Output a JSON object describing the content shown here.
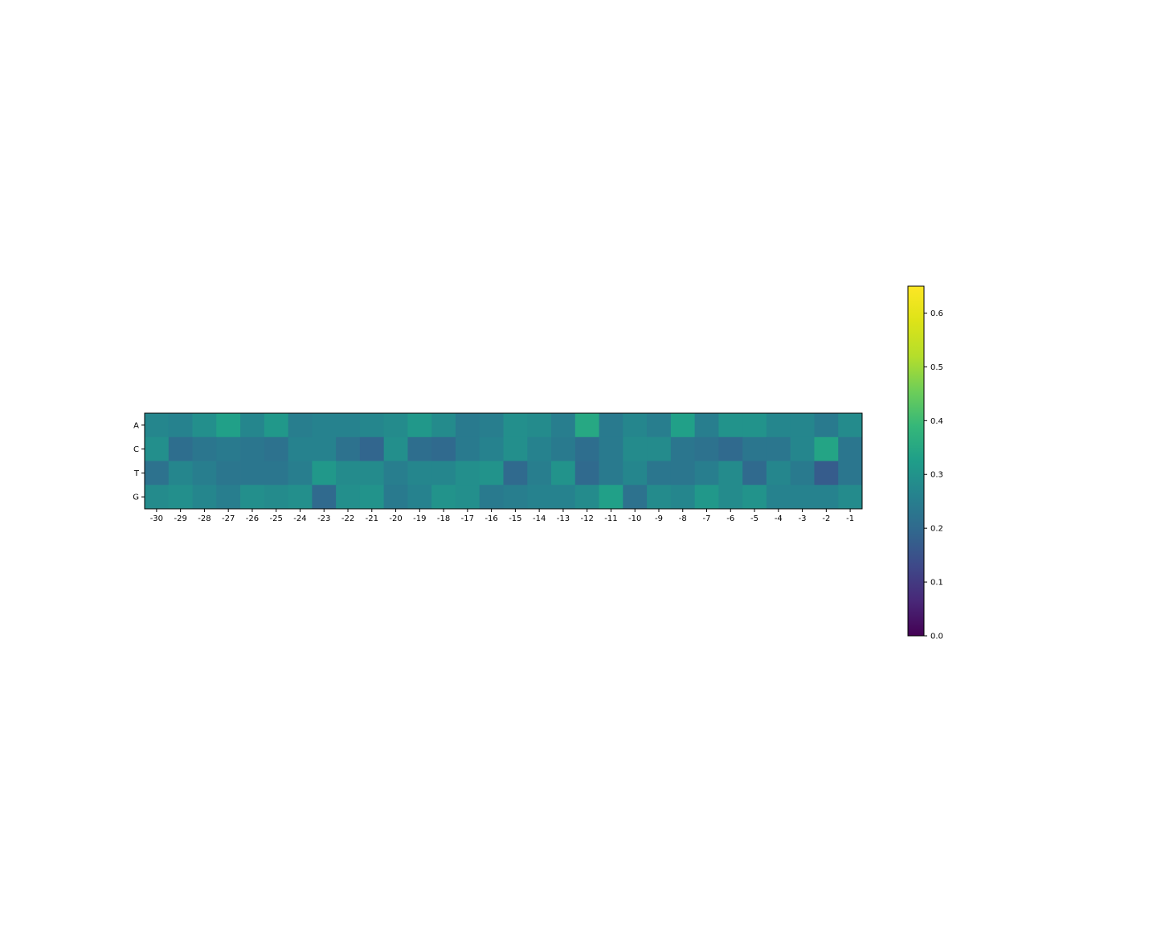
{
  "chart_data": {
    "type": "heatmap",
    "colormap": "viridis",
    "x_labels": [
      "-30",
      "-29",
      "-28",
      "-27",
      "-26",
      "-25",
      "-24",
      "-23",
      "-22",
      "-21",
      "-20",
      "-19",
      "-18",
      "-17",
      "-16",
      "-15",
      "-14",
      "-13",
      "-12",
      "-11",
      "-10",
      "-9",
      "-8",
      "-7",
      "-6",
      "-5",
      "-4",
      "-3",
      "-2",
      "-1"
    ],
    "y_labels": [
      "A",
      "C",
      "T",
      "G"
    ],
    "values": [
      [
        0.27,
        0.26,
        0.29,
        0.33,
        0.27,
        0.31,
        0.25,
        0.26,
        0.26,
        0.27,
        0.28,
        0.31,
        0.28,
        0.24,
        0.25,
        0.29,
        0.28,
        0.25,
        0.35,
        0.24,
        0.27,
        0.25,
        0.33,
        0.25,
        0.3,
        0.3,
        0.27,
        0.27,
        0.24,
        0.28
      ],
      [
        0.29,
        0.21,
        0.23,
        0.24,
        0.23,
        0.22,
        0.26,
        0.26,
        0.22,
        0.19,
        0.29,
        0.21,
        0.2,
        0.24,
        0.26,
        0.29,
        0.26,
        0.24,
        0.21,
        0.24,
        0.28,
        0.28,
        0.23,
        0.22,
        0.2,
        0.23,
        0.23,
        0.27,
        0.34,
        0.23
      ],
      [
        0.22,
        0.27,
        0.25,
        0.23,
        0.23,
        0.23,
        0.25,
        0.31,
        0.28,
        0.28,
        0.25,
        0.27,
        0.27,
        0.29,
        0.3,
        0.2,
        0.25,
        0.3,
        0.2,
        0.24,
        0.27,
        0.23,
        0.23,
        0.25,
        0.28,
        0.2,
        0.27,
        0.24,
        0.17,
        0.23
      ],
      [
        0.28,
        0.29,
        0.27,
        0.25,
        0.29,
        0.28,
        0.29,
        0.2,
        0.29,
        0.3,
        0.24,
        0.26,
        0.3,
        0.29,
        0.24,
        0.25,
        0.26,
        0.26,
        0.28,
        0.33,
        0.22,
        0.28,
        0.27,
        0.31,
        0.28,
        0.3,
        0.26,
        0.26,
        0.26,
        0.28
      ]
    ],
    "vmin": 0.0,
    "vmax": 0.65,
    "colorbar_ticks": [
      "0.0",
      "0.1",
      "0.2",
      "0.3",
      "0.4",
      "0.5",
      "0.6"
    ]
  }
}
